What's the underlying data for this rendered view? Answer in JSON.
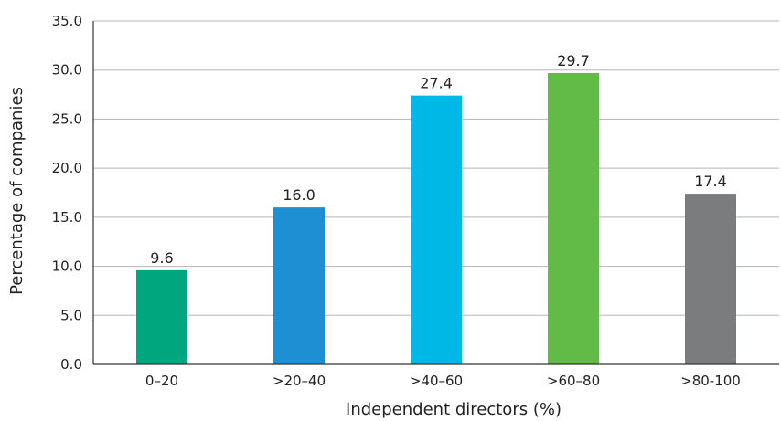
{
  "chart_data": {
    "type": "bar",
    "title": "",
    "xlabel": "Independent directors (%)",
    "ylabel": "Percentage of companies",
    "categories": [
      "0–20",
      ">20–40",
      ">40–60",
      ">60–80",
      ">80-100"
    ],
    "values": [
      9.6,
      16.0,
      27.4,
      29.7,
      17.4
    ],
    "value_labels": [
      "9.6",
      "16.0",
      "27.4",
      "29.7",
      "17.4"
    ],
    "colors": [
      "#00a67e",
      "#1f8fd4",
      "#00b8e6",
      "#62bb46",
      "#7b7c7e"
    ],
    "ylim": [
      0,
      35
    ],
    "yticks": [
      0,
      5,
      10,
      15,
      20,
      25,
      30,
      35
    ],
    "ytick_labels": [
      "0.0",
      "5.0",
      "10.0",
      "15.0",
      "20.0",
      "25.0",
      "30.0",
      "35.0"
    ],
    "grid": true,
    "legend": "none"
  }
}
